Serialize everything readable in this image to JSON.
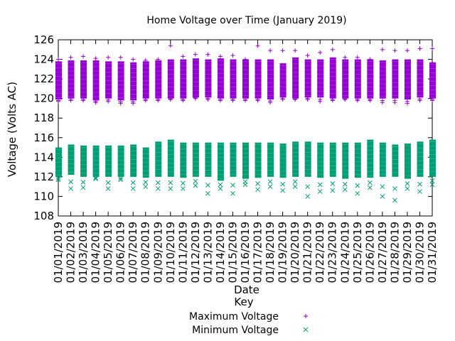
{
  "chart_data": {
    "type": "scatter",
    "title": "Home Voltage over Time (January 2019)",
    "xlabel": "Date",
    "ylabel": "Voltage (Volts AC)",
    "ylim": [
      108,
      126
    ],
    "yticks": [
      108,
      110,
      112,
      114,
      116,
      118,
      120,
      122,
      124,
      126
    ],
    "grid": false,
    "legend_title": "Key",
    "legend_position": "bottom-center",
    "categories": [
      "01/01/2019",
      "01/02/2019",
      "01/03/2019",
      "01/04/2019",
      "01/05/2019",
      "01/06/2019",
      "01/07/2019",
      "01/08/2019",
      "01/09/2019",
      "01/10/2019",
      "01/11/2019",
      "01/12/2019",
      "01/13/2019",
      "01/14/2019",
      "01/15/2019",
      "01/16/2019",
      "01/17/2019",
      "01/18/2019",
      "01/19/2019",
      "01/20/2019",
      "01/21/2019",
      "01/22/2019",
      "01/23/2019",
      "01/24/2019",
      "01/25/2019",
      "01/26/2019",
      "01/27/2019",
      "01/28/2019",
      "01/29/2019",
      "01/30/2019",
      "01/31/2019"
    ],
    "series": [
      {
        "name": "Maximum Voltage",
        "marker": "+",
        "color": "#9400d3",
        "band_low": [
          119.9,
          120.0,
          120.0,
          119.8,
          120.0,
          119.8,
          119.8,
          120.0,
          120.0,
          120.0,
          120.0,
          120.1,
          120.1,
          120.0,
          120.0,
          120.0,
          120.0,
          119.9,
          120.1,
          120.0,
          120.1,
          120.1,
          120.0,
          120.0,
          120.0,
          120.0,
          120.0,
          120.0,
          119.9,
          120.1,
          120.0
        ],
        "band_high": [
          123.8,
          123.9,
          123.9,
          123.9,
          123.8,
          123.8,
          123.7,
          123.8,
          123.9,
          124.0,
          124.0,
          124.1,
          124.0,
          124.1,
          124.0,
          124.0,
          124.0,
          124.0,
          123.6,
          124.2,
          124.0,
          124.0,
          124.2,
          124.0,
          124.0,
          124.0,
          123.9,
          124.0,
          124.0,
          124.0,
          123.7
        ],
        "outliers_high": [
          124.0,
          124.2,
          124.3,
          124.1,
          124.2,
          124.2,
          124.0,
          123.9,
          124.0,
          125.4,
          124.3,
          124.5,
          124.5,
          124.3,
          124.4,
          124.0,
          125.4,
          124.9,
          124.9,
          124.9,
          124.4,
          124.7,
          125.0,
          124.2,
          124.2,
          124.0,
          125.0,
          124.9,
          124.9,
          125.1,
          125.1
        ],
        "outliers_low": [
          119.7,
          119.8,
          119.8,
          119.6,
          119.7,
          119.5,
          119.5,
          119.8,
          119.8,
          119.9,
          119.8,
          120.0,
          119.9,
          119.8,
          119.8,
          119.8,
          119.8,
          119.6,
          119.9,
          119.9,
          119.9,
          119.7,
          119.8,
          119.9,
          119.8,
          119.8,
          119.6,
          119.6,
          119.5,
          119.8,
          119.8
        ]
      },
      {
        "name": "Minimum Voltage",
        "marker": "x",
        "color": "#009e73",
        "band_low": [
          112.0,
          112.2,
          112.0,
          112.0,
          112.0,
          112.0,
          112.0,
          111.9,
          112.0,
          112.0,
          111.9,
          112.0,
          112.0,
          111.6,
          112.0,
          111.8,
          111.9,
          112.0,
          111.9,
          112.0,
          112.0,
          111.9,
          112.0,
          111.8,
          111.9,
          111.9,
          112.0,
          112.0,
          111.8,
          112.0,
          112.0
        ],
        "band_high": [
          115.0,
          115.3,
          115.2,
          115.2,
          115.2,
          115.2,
          115.3,
          115.0,
          115.6,
          115.8,
          115.5,
          115.5,
          115.5,
          115.5,
          115.5,
          115.5,
          115.5,
          115.5,
          115.4,
          115.6,
          115.6,
          115.5,
          115.5,
          115.5,
          115.5,
          115.8,
          115.5,
          115.3,
          115.4,
          115.6,
          115.8
        ],
        "outliers_low": [
          111.7,
          110.8,
          110.9,
          111.8,
          110.8,
          111.7,
          110.8,
          111.0,
          110.8,
          110.8,
          110.8,
          111.1,
          110.3,
          110.8,
          110.3,
          111.2,
          110.7,
          111.0,
          110.6,
          111.0,
          110.0,
          110.5,
          110.6,
          110.7,
          110.3,
          110.9,
          110.0,
          109.6,
          110.8,
          110.5,
          111.2
        ]
      }
    ]
  }
}
